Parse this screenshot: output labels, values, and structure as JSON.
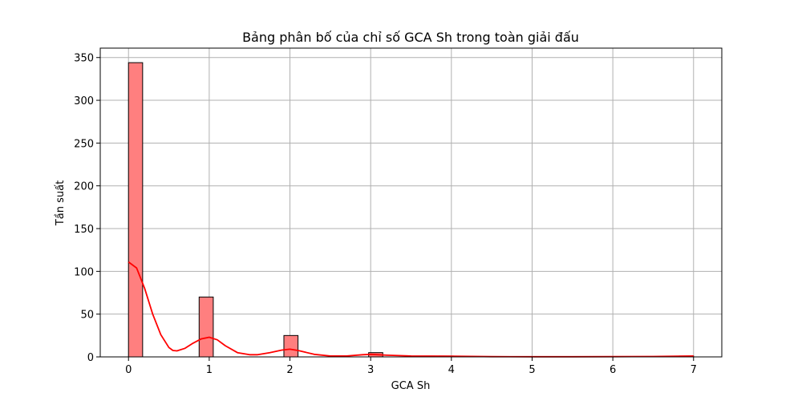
{
  "chart_data": {
    "type": "bar",
    "title": "Bảng phân bố của chỉ số GCA Sh trong toàn giải đấu",
    "xlabel": "GCA Sh",
    "ylabel": "Tần suất",
    "xlim": [
      -0.35,
      7.35
    ],
    "ylim": [
      0,
      361
    ],
    "grid": true,
    "x_ticks": [
      0,
      1,
      2,
      3,
      4,
      5,
      6,
      7
    ],
    "y_ticks": [
      0,
      50,
      100,
      150,
      200,
      250,
      300,
      350
    ],
    "bin_width": 0.175,
    "bins": [
      {
        "x_start": 0.0,
        "value": 344
      },
      {
        "x_start": 0.875,
        "value": 70
      },
      {
        "x_start": 1.925,
        "value": 25
      },
      {
        "x_start": 2.975,
        "value": 5
      },
      {
        "x_start": 3.85,
        "value": 1
      },
      {
        "x_start": 6.825,
        "value": 1
      }
    ],
    "series": [
      {
        "type": "kde-line",
        "x": [
          0,
          0.1,
          0.2,
          0.3,
          0.4,
          0.5,
          0.55,
          0.6,
          0.7,
          0.8,
          0.9,
          1.0,
          1.1,
          1.2,
          1.35,
          1.5,
          1.6,
          1.75,
          1.9,
          2.0,
          2.1,
          2.3,
          2.5,
          2.7,
          2.9,
          3.0,
          3.2,
          3.5,
          4.0,
          4.5,
          5.0,
          5.5,
          6.0,
          6.5,
          7.0
        ],
        "values": [
          111,
          104,
          80,
          50,
          26,
          11,
          7.5,
          7,
          10,
          16,
          21,
          23,
          20,
          13,
          5,
          2.5,
          2.5,
          5,
          8,
          9,
          7.5,
          3,
          1,
          1,
          2.5,
          3,
          2,
          1,
          0.8,
          0.3,
          0.2,
          0.2,
          0.3,
          0.5,
          1
        ],
        "color": "#ff0000"
      }
    ],
    "bar_color": "#ff7f7f",
    "bar_edge_color": "#000000"
  }
}
